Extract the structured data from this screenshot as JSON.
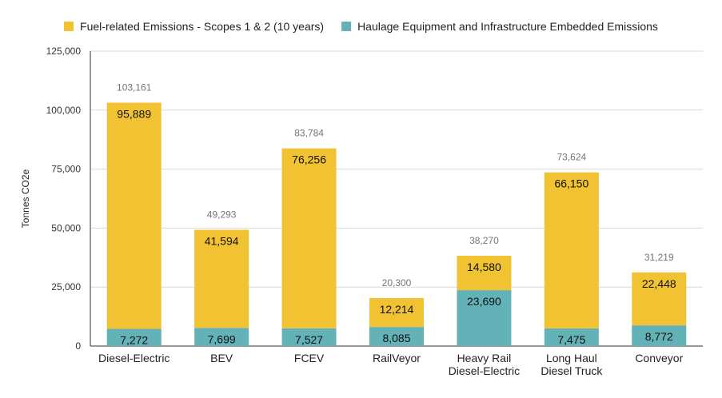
{
  "chart_data": {
    "type": "bar",
    "stacked": true,
    "categories": [
      [
        "Diesel-Electric"
      ],
      [
        "BEV"
      ],
      [
        "FCEV"
      ],
      [
        "RailVeyor"
      ],
      [
        "Heavy Rail",
        "Diesel-Electric"
      ],
      [
        "Long Haul",
        "Diesel Truck"
      ],
      [
        "Conveyor"
      ]
    ],
    "series": [
      {
        "name": "Haulage Equipment and Infrastructure Embedded Emissions",
        "color": "#63b2b8",
        "values": [
          7272,
          7699,
          7527,
          8085,
          23690,
          7475,
          8772
        ],
        "labels": [
          "7,272",
          "7,699",
          "7,527",
          "8,085",
          "23,690",
          "7,475",
          "8,772"
        ]
      },
      {
        "name": "Fuel-related Emissions - Scopes 1 & 2 (10 years)",
        "color": "#f1c232",
        "values": [
          95889,
          41594,
          76256,
          12214,
          14580,
          66150,
          22448
        ],
        "labels": [
          "95,889",
          "41,594",
          "76,256",
          "12,214",
          "14,580",
          "66,150",
          "22,448"
        ]
      }
    ],
    "totals": [
      "103,161",
      "49,293",
      "83,784",
      "20,300",
      "38,270",
      "73,624",
      "31,219"
    ],
    "totals_values": [
      103161,
      49293,
      83784,
      20300,
      38270,
      73624,
      31219
    ],
    "legend_order": [
      1,
      0
    ],
    "legend_position": "top",
    "title": "",
    "xlabel": "",
    "ylabel": "Tonnes CO2e",
    "ylim": [
      0,
      125000
    ],
    "yticks": [
      0,
      25000,
      50000,
      75000,
      100000,
      125000
    ],
    "ytick_labels": [
      "0",
      "25,000",
      "50,000",
      "75,000",
      "100,000",
      "125,000"
    ],
    "grid": true
  }
}
